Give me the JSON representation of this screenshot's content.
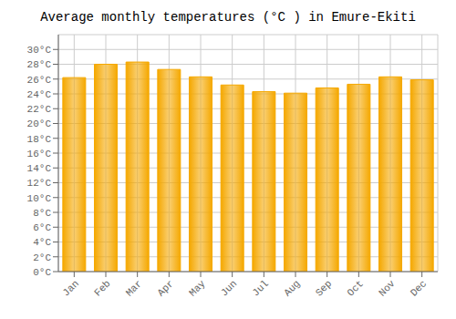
{
  "chart_data": {
    "type": "bar",
    "title": "Average monthly temperatures (°C ) in Emure-Ekiti",
    "categories": [
      "Jan",
      "Feb",
      "Mar",
      "Apr",
      "May",
      "Jun",
      "Jul",
      "Aug",
      "Sep",
      "Oct",
      "Nov",
      "Dec"
    ],
    "values": [
      26.2,
      28.0,
      28.3,
      27.3,
      26.3,
      25.2,
      24.3,
      24.1,
      24.8,
      25.3,
      26.3,
      25.9
    ],
    "color": "#F5A800",
    "ylim": [
      0,
      32
    ],
    "yticks": [
      {
        "value": 0,
        "label": "0°C"
      },
      {
        "value": 2,
        "label": "2°C"
      },
      {
        "value": 4,
        "label": "4°C"
      },
      {
        "value": 6,
        "label": "6°C"
      },
      {
        "value": 8,
        "label": "8°C"
      },
      {
        "value": 10,
        "label": "10°C"
      },
      {
        "value": 12,
        "label": "12°C"
      },
      {
        "value": 14,
        "label": "14°C"
      },
      {
        "value": 16,
        "label": "16°C"
      },
      {
        "value": 18,
        "label": "18°C"
      },
      {
        "value": 20,
        "label": "20°C"
      },
      {
        "value": 22,
        "label": "22°C"
      },
      {
        "value": 24,
        "label": "24°C"
      },
      {
        "value": 26,
        "label": "26°C"
      },
      {
        "value": 28,
        "label": "28°C"
      },
      {
        "value": 30,
        "label": "30°C"
      }
    ],
    "grid": true
  }
}
